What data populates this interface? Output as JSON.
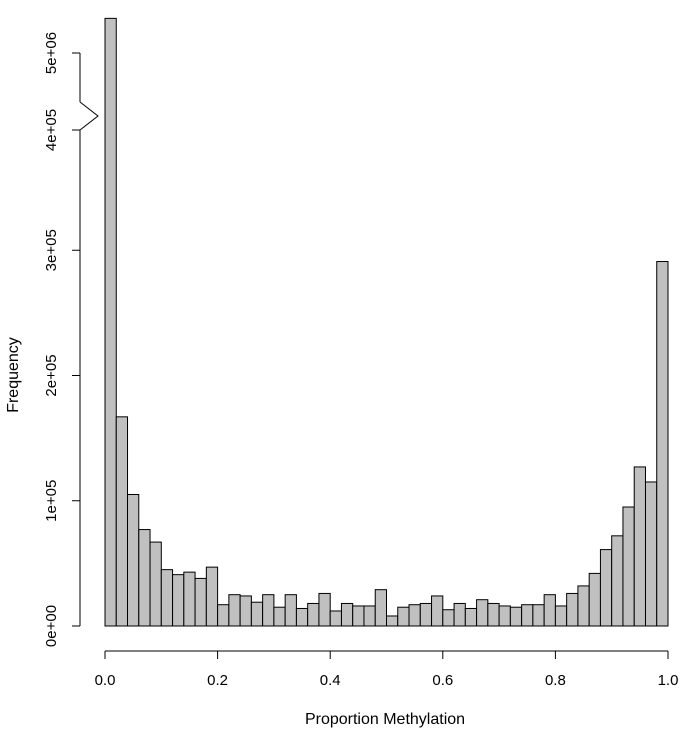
{
  "chart_data": {
    "type": "bar",
    "xlabel": "Proportion Methylation",
    "ylabel": "Frequency",
    "x_ticks": [
      "0.0",
      "0.2",
      "0.4",
      "0.6",
      "0.8",
      "1.0"
    ],
    "y_ticks_lower": [
      "0e+00",
      "1e+05",
      "2e+05",
      "3e+05"
    ],
    "y_ticks_upper": [
      "4e+05",
      "5e+06"
    ],
    "xlim": [
      0,
      1
    ],
    "ylim_lower": [
      0,
      400000
    ],
    "ylim_upper": [
      4000000,
      5500000
    ],
    "axis_break": true,
    "bin_width": 0.02,
    "bin_starts": [
      0.0,
      0.02,
      0.04,
      0.06,
      0.08,
      0.1,
      0.12,
      0.14,
      0.16,
      0.18,
      0.2,
      0.22,
      0.24,
      0.26,
      0.28,
      0.3,
      0.32,
      0.34,
      0.36,
      0.38,
      0.4,
      0.42,
      0.44,
      0.46,
      0.48,
      0.5,
      0.52,
      0.54,
      0.56,
      0.58,
      0.6,
      0.62,
      0.64,
      0.66,
      0.68,
      0.7,
      0.72,
      0.74,
      0.76,
      0.78,
      0.8,
      0.82,
      0.84,
      0.86,
      0.88,
      0.9,
      0.92,
      0.94,
      0.96,
      0.98
    ],
    "values": [
      5450000,
      167000,
      105000,
      77000,
      67000,
      45000,
      41000,
      43000,
      38000,
      47000,
      17000,
      25000,
      24000,
      19000,
      25000,
      15000,
      25000,
      14000,
      18000,
      26000,
      12000,
      18000,
      16000,
      16000,
      29000,
      8000,
      15000,
      17000,
      18000,
      24000,
      13000,
      18000,
      14000,
      21000,
      18000,
      16000,
      15000,
      17000,
      17000,
      25000,
      16000,
      26000,
      32000,
      42000,
      61000,
      72000,
      95000,
      127000,
      115000,
      291000
    ],
    "bar_color": "#c0c0c0",
    "grid": false,
    "legend": "none"
  }
}
